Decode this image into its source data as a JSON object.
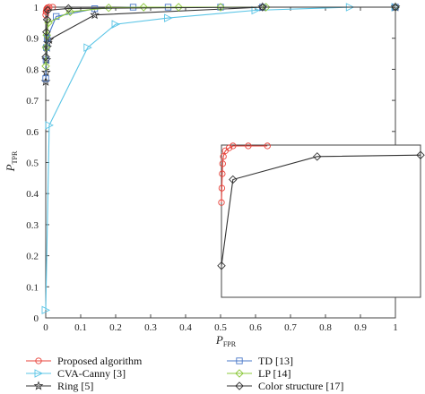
{
  "chart_data": {
    "type": "line",
    "xlabel": "P",
    "xlabel_sub": "FPR",
    "ylabel": "P",
    "ylabel_sub": "TPR",
    "xlim": [
      0,
      1
    ],
    "ylim": [
      0,
      1
    ],
    "x_ticks": [
      "0",
      "0.1",
      "0.2",
      "0.3",
      "0.4",
      "0.5",
      "0.6",
      "0.7",
      "0.8",
      "0.9",
      "1"
    ],
    "y_ticks": [
      "0",
      "0.1",
      "0.2",
      "0.3",
      "0.4",
      "0.5",
      "0.6",
      "0.7",
      "0.8",
      "0.9",
      "1"
    ],
    "grid": false,
    "legend_position": "bottom",
    "series": [
      {
        "name": "Proposed algorithm",
        "color": "#e8423a",
        "marker": "circle",
        "x": [
          0,
          0.001,
          0.002,
          0.003,
          0.005,
          0.01,
          0.02
        ],
        "y": [
          0.975,
          0.985,
          0.99,
          0.995,
          0.998,
          1.0,
          1.0
        ]
      },
      {
        "name": "CVA-Canny [3]",
        "color": "#5bc5e6",
        "marker": "triangle-right",
        "x": [
          0,
          0.01,
          0.12,
          0.2,
          0.35,
          0.6,
          0.87,
          1.0
        ],
        "y": [
          0.025,
          0.62,
          0.87,
          0.945,
          0.965,
          0.99,
          1.0,
          1.0
        ]
      },
      {
        "name": "Ring [5]",
        "color": "#333333",
        "marker": "star",
        "x": [
          0,
          0.001,
          0.002,
          0.004,
          0.006,
          0.01,
          0.14,
          0.62,
          1.0
        ],
        "y": [
          0.76,
          0.79,
          0.83,
          0.87,
          0.885,
          0.895,
          0.975,
          1.0,
          1.0
        ]
      },
      {
        "name": "TD [13]",
        "color": "#4a78c8",
        "marker": "square",
        "x": [
          0,
          0.001,
          0.002,
          0.004,
          0.03,
          0.14,
          0.25,
          0.35,
          0.5,
          0.62,
          1.0
        ],
        "y": [
          0.77,
          0.83,
          0.87,
          0.9,
          0.97,
          0.995,
          1.0,
          1.0,
          1.0,
          1.0,
          1.0
        ]
      },
      {
        "name": "LP [14]",
        "color": "#8cc83c",
        "marker": "diamond",
        "x": [
          0,
          0.001,
          0.003,
          0.008,
          0.07,
          0.18,
          0.28,
          0.38,
          0.5,
          0.63,
          1.0
        ],
        "y": [
          0.81,
          0.87,
          0.91,
          0.95,
          0.985,
          0.998,
          1.0,
          1.0,
          1.0,
          1.0,
          1.0
        ]
      },
      {
        "name": "Color structure [17]",
        "color": "#333333",
        "marker": "diamond",
        "x": [
          0,
          0.002,
          0.004,
          0.006,
          0.065,
          0.62,
          1.0
        ],
        "y": [
          0.84,
          0.92,
          0.96,
          0.99,
          0.996,
          1.0,
          1.0
        ]
      }
    ],
    "inset": {
      "series": [
        {
          "name": "Proposed algorithm",
          "color": "#e8423a",
          "marker": "circle",
          "x": [
            0.48,
            0.481,
            0.482,
            0.483,
            0.485,
            0.49,
            0.5,
            0.51,
            0.55,
            0.6
          ],
          "y": [
            0.33,
            0.38,
            0.43,
            0.465,
            0.49,
            0.51,
            0.52,
            0.527,
            0.527,
            0.527
          ]
        },
        {
          "name": "Color structure [17]",
          "color": "#333333",
          "marker": "diamond",
          "x": [
            0.48,
            0.51,
            0.73,
            1.0
          ],
          "y": [
            0.11,
            0.41,
            0.49,
            0.495
          ]
        }
      ]
    }
  },
  "legend": [
    {
      "label": "Proposed algorithm",
      "color": "#e8423a",
      "marker": "circle"
    },
    {
      "label": "TD [13]",
      "color": "#4a78c8",
      "marker": "square"
    },
    {
      "label": "CVA-Canny [3]",
      "color": "#5bc5e6",
      "marker": "triangle-right"
    },
    {
      "label": "LP [14]",
      "color": "#8cc83c",
      "marker": "diamond"
    },
    {
      "label": "Ring [5]",
      "color": "#333333",
      "marker": "star"
    },
    {
      "label": "Color structure [17]",
      "color": "#333333",
      "marker": "diamond"
    }
  ]
}
